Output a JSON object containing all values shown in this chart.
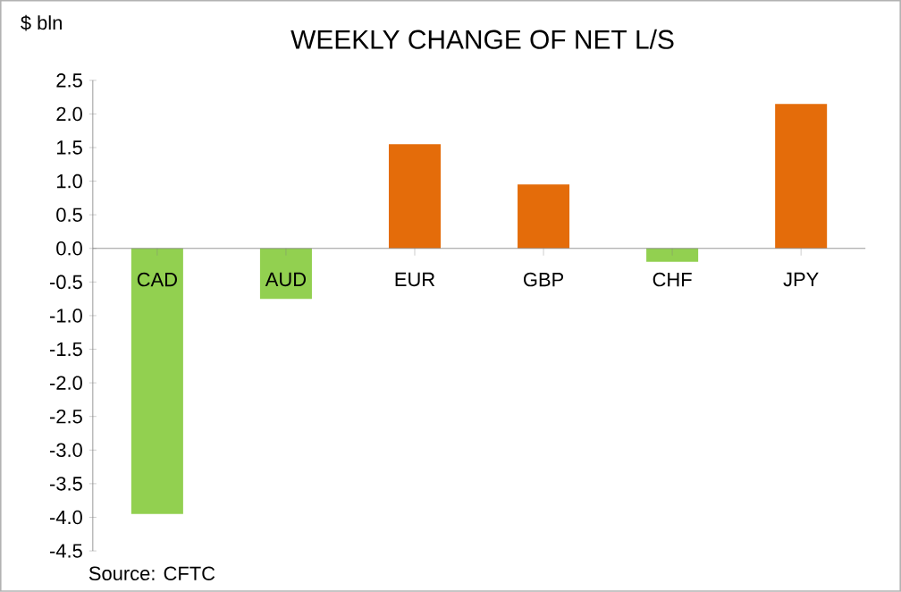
{
  "chart_data": {
    "type": "bar",
    "title": "WEEKLY CHANGE OF NET L/S",
    "ylabel": "$ bln",
    "annotations": [
      "Source: CFTC"
    ],
    "categories": [
      "CAD",
      "AUD",
      "EUR",
      "GBP",
      "CHF",
      "JPY"
    ],
    "values": [
      -3.95,
      -0.75,
      1.55,
      0.95,
      -0.2,
      2.15
    ],
    "colors": [
      "#92d050",
      "#92d050",
      "#e46c0a",
      "#e46c0a",
      "#92d050",
      "#e46c0a"
    ],
    "ylim": [
      -4.5,
      2.5
    ],
    "yticks": [
      {
        "value": 2.5,
        "label": "2.5"
      },
      {
        "value": 2,
        "label": "2.0"
      },
      {
        "value": 1.5,
        "label": "1.5"
      },
      {
        "value": 1,
        "label": "1.0"
      },
      {
        "value": 0.5,
        "label": "0.5"
      },
      {
        "value": 0,
        "label": "0.0"
      },
      {
        "value": -0.5,
        "label": "-0.5"
      },
      {
        "value": -1,
        "label": "-1.0"
      },
      {
        "value": -1.5,
        "label": "-1.5"
      },
      {
        "value": -2,
        "label": "-2.0"
      },
      {
        "value": -2.5,
        "label": "-2.5"
      },
      {
        "value": -3,
        "label": "-3.0"
      },
      {
        "value": -3.5,
        "label": "-3.5"
      },
      {
        "value": -4,
        "label": "-4.0"
      },
      {
        "value": -4.5,
        "label": "-4.5"
      }
    ]
  }
}
